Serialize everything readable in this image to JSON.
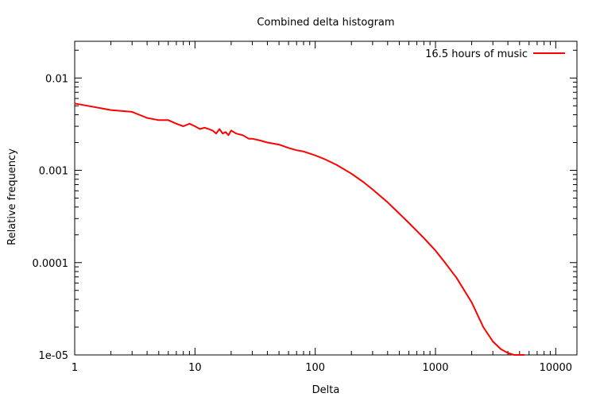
{
  "chart_data": {
    "type": "line",
    "title": "Combined delta histogram",
    "xlabel": "Delta",
    "ylabel": "Relative frequency",
    "x_scale": "log",
    "y_scale": "log",
    "xlim": [
      1,
      15000
    ],
    "ylim": [
      1e-05,
      0.025
    ],
    "x_ticks": [
      {
        "value": 1,
        "label": "1"
      },
      {
        "value": 10,
        "label": "10"
      },
      {
        "value": 100,
        "label": "100"
      },
      {
        "value": 1000,
        "label": "1000"
      },
      {
        "value": 10000,
        "label": "10000"
      }
    ],
    "y_ticks": [
      {
        "value": 0.01,
        "label": "0.01"
      },
      {
        "value": 0.001,
        "label": "0.001"
      },
      {
        "value": 0.0001,
        "label": "0.0001"
      },
      {
        "value": 1e-05,
        "label": "1e-05"
      }
    ],
    "grid": false,
    "legend_position": "top-right",
    "series": [
      {
        "name": "16.5 hours of music",
        "color": "#ff0000",
        "x": [
          1,
          2,
          3,
          4,
          5,
          6,
          7,
          8,
          9,
          10,
          11,
          12,
          13,
          14,
          15,
          16,
          17,
          18,
          19,
          20,
          22,
          25,
          28,
          30,
          35,
          40,
          50,
          60,
          70,
          80,
          100,
          120,
          150,
          200,
          250,
          300,
          400,
          500,
          600,
          700,
          800,
          1000,
          1200,
          1500,
          2000,
          2500,
          3000,
          3500,
          4000,
          4500,
          5000,
          5500
        ],
        "y": [
          0.0053,
          0.0045,
          0.0043,
          0.0037,
          0.0035,
          0.0035,
          0.0032,
          0.003,
          0.0032,
          0.003,
          0.0028,
          0.0029,
          0.0028,
          0.0027,
          0.0025,
          0.0028,
          0.0025,
          0.0026,
          0.0024,
          0.0027,
          0.0025,
          0.0024,
          0.0022,
          0.0022,
          0.0021,
          0.002,
          0.0019,
          0.00175,
          0.00165,
          0.0016,
          0.00145,
          0.00132,
          0.00115,
          0.00092,
          0.00075,
          0.00062,
          0.00045,
          0.00034,
          0.00027,
          0.00022,
          0.000185,
          0.000135,
          0.0001,
          6.8e-05,
          3.7e-05,
          2e-05,
          1.4e-05,
          1.15e-05,
          1.05e-05,
          1e-05,
          1e-05,
          1e-05
        ]
      }
    ]
  }
}
